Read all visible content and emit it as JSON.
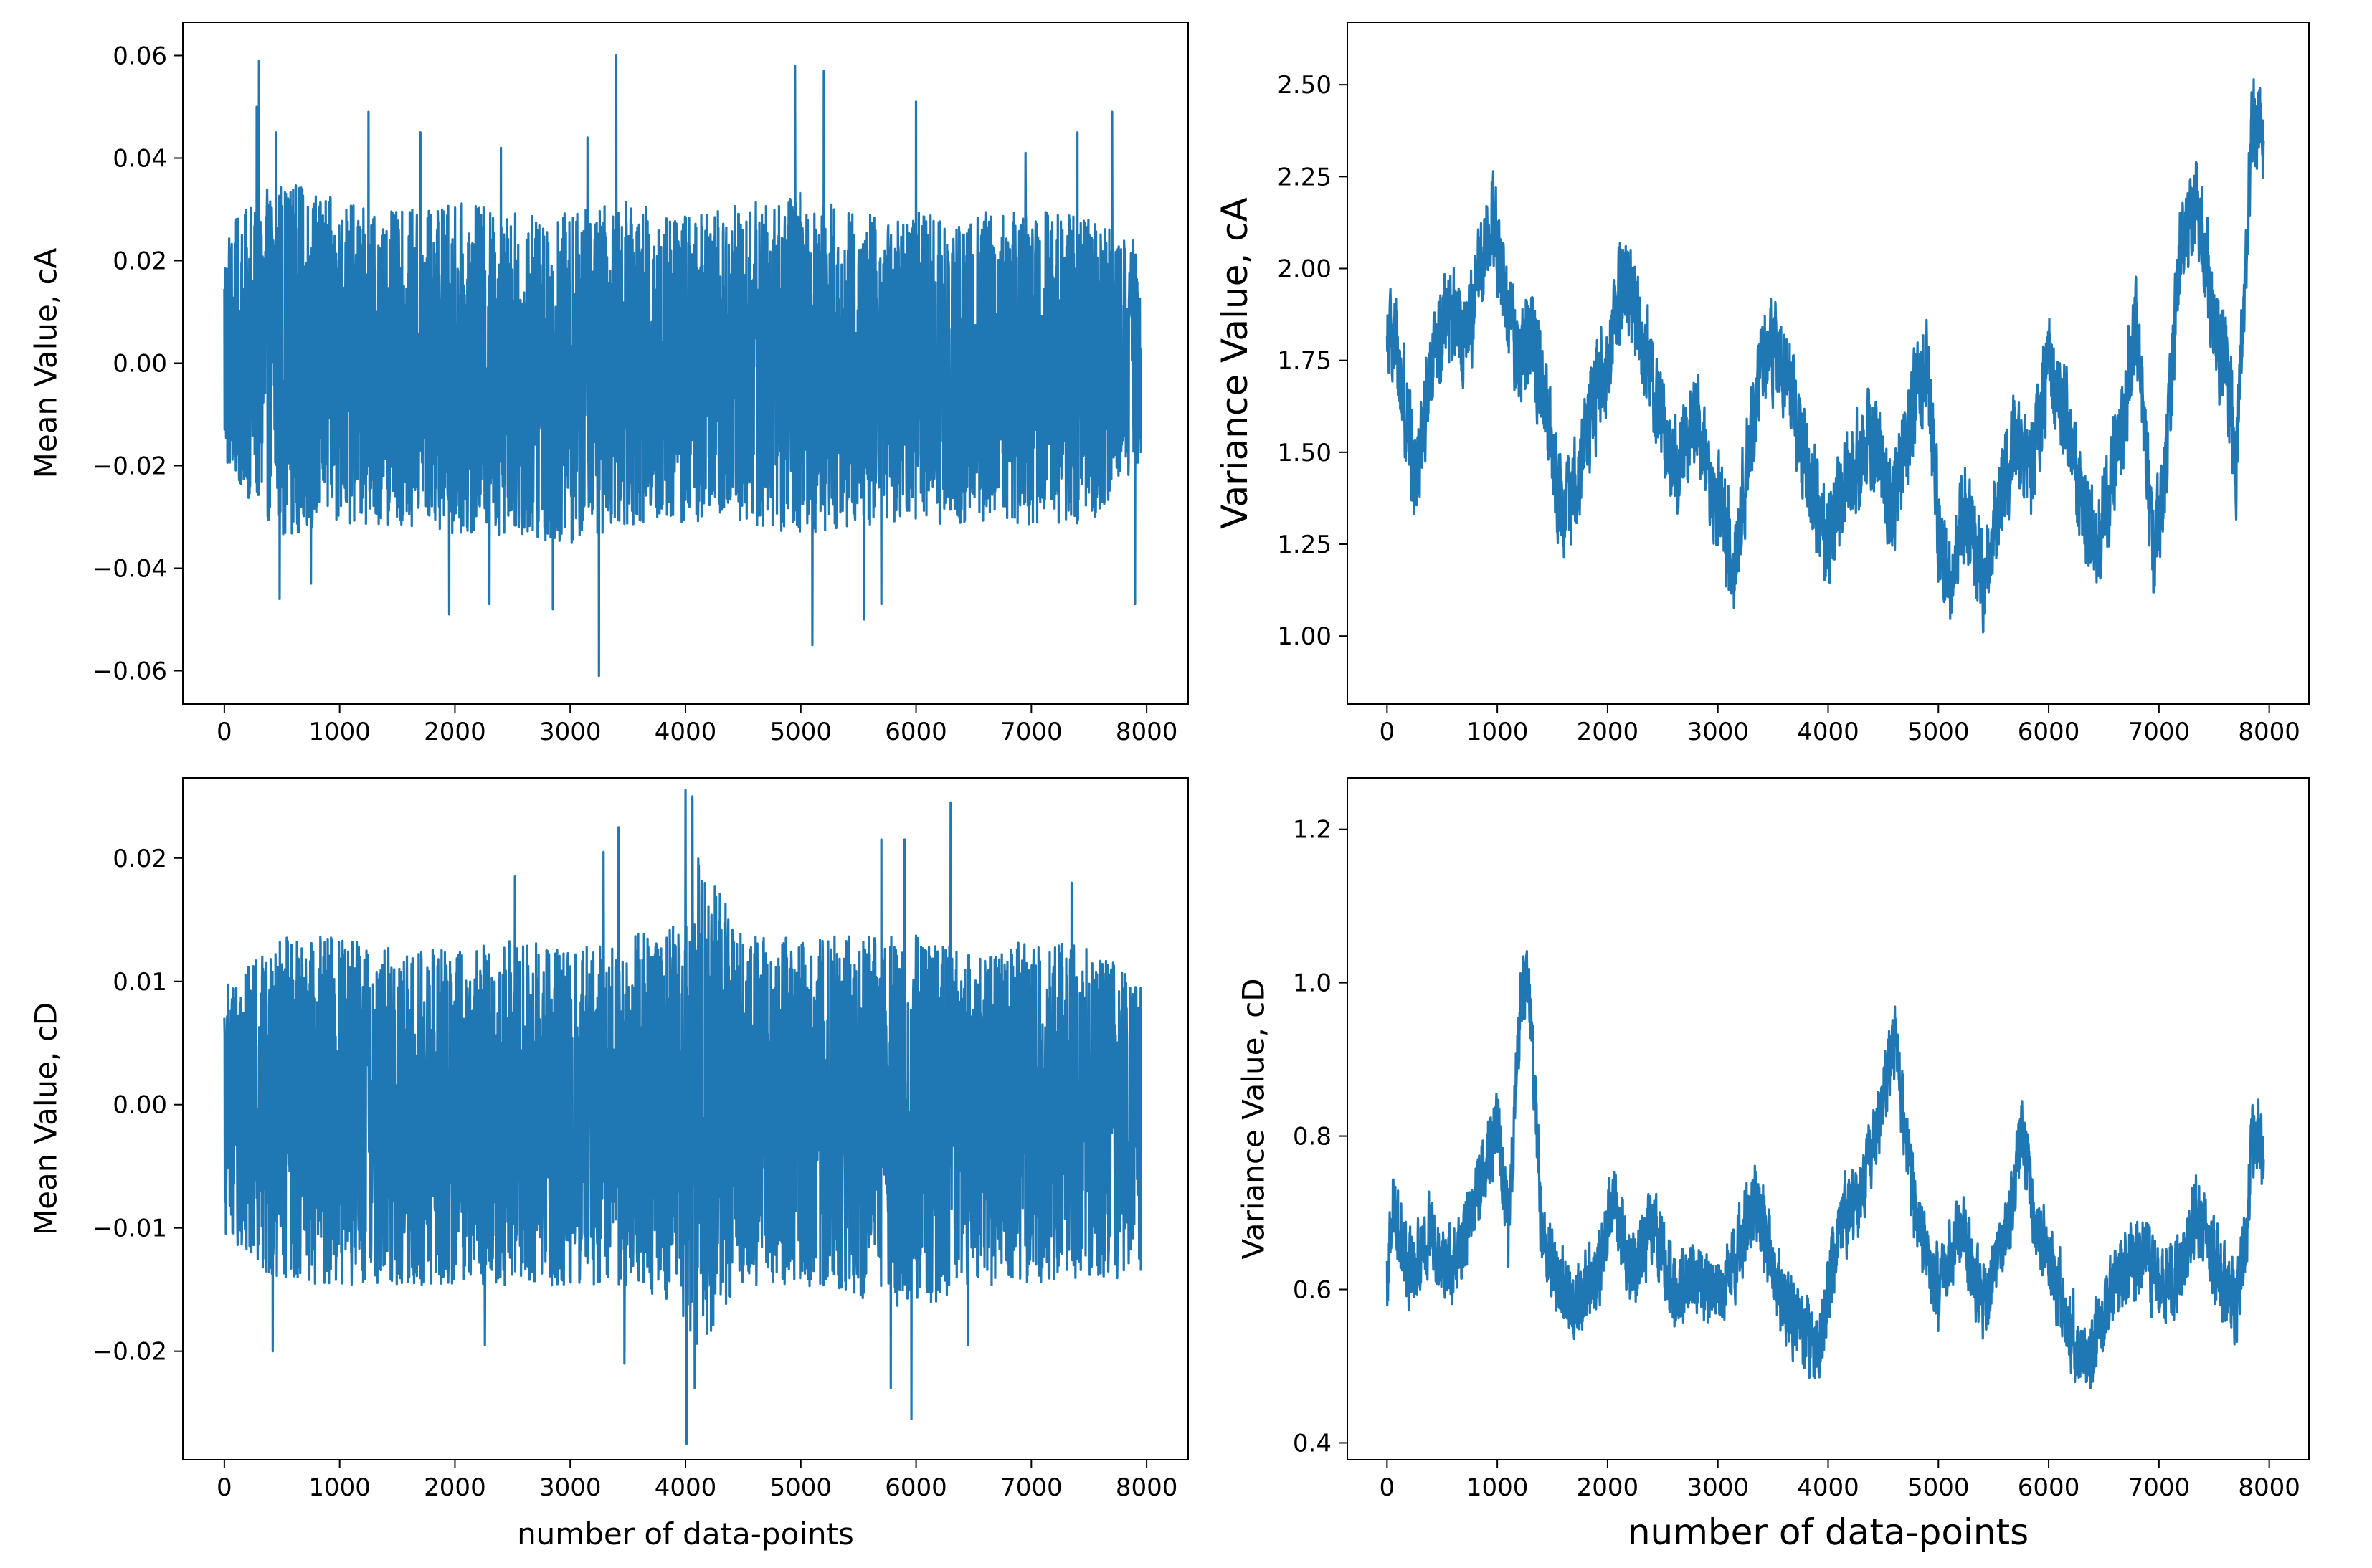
{
  "chart_data": [
    {
      "type": "line",
      "id": "mean-ca",
      "ylabel": "Mean Value, cA",
      "xlabel": "",
      "xlim": [
        -360,
        8360
      ],
      "ylim": [
        -0.0665,
        0.0665
      ],
      "xticks": [
        0,
        1000,
        2000,
        3000,
        4000,
        5000,
        6000,
        7000,
        8000
      ],
      "yticks": [
        -0.06,
        -0.04,
        -0.02,
        0.0,
        0.02,
        0.04,
        0.06
      ],
      "ytick_labels": [
        "−0.06",
        "−0.04",
        "−0.02",
        "0.00",
        "0.02",
        "0.04",
        "0.06"
      ],
      "series": [
        {
          "color": "#1f77b4",
          "n_points": 7950,
          "x_range": [
            0,
            7950
          ],
          "envelope": {
            "x": [
              0,
              500,
              1000,
              1500,
              2000,
              2500,
              3000,
              3500,
              4000,
              4500,
              5000,
              5500,
              6000,
              6500,
              7000,
              7500,
              7950
            ],
            "upper": [
              0.025,
              0.035,
              0.03,
              0.028,
              0.03,
              0.028,
              0.028,
              0.03,
              0.028,
              0.03,
              0.032,
              0.028,
              0.028,
              0.028,
              0.028,
              0.028,
              0.022
            ],
            "lower": [
              -0.02,
              -0.032,
              -0.03,
              -0.03,
              -0.032,
              -0.032,
              -0.034,
              -0.03,
              -0.03,
              -0.03,
              -0.032,
              -0.03,
              -0.03,
              -0.03,
              -0.03,
              -0.03,
              -0.018
            ]
          },
          "spikes": [
            [
              300,
              0.059
            ],
            [
              280,
              0.05
            ],
            [
              450,
              0.045
            ],
            [
              1250,
              0.049
            ],
            [
              1700,
              0.045
            ],
            [
              2400,
              0.042
            ],
            [
              3400,
              0.06
            ],
            [
              3150,
              0.044
            ],
            [
              4950,
              0.058
            ],
            [
              5200,
              0.057
            ],
            [
              6000,
              0.051
            ],
            [
              6950,
              0.041
            ],
            [
              7400,
              0.045
            ],
            [
              7700,
              0.049
            ],
            [
              1950,
              -0.049
            ],
            [
              2300,
              -0.047
            ],
            [
              3250,
              -0.061
            ],
            [
              2850,
              -0.048
            ],
            [
              5100,
              -0.055
            ],
            [
              5550,
              -0.05
            ],
            [
              5700,
              -0.047
            ],
            [
              480,
              -0.046
            ],
            [
              750,
              -0.043
            ],
            [
              7900,
              -0.047
            ]
          ]
        }
      ]
    },
    {
      "type": "line",
      "id": "variance-ca",
      "ylabel": "Variance Value, cA",
      "xlabel": "",
      "xlim": [
        -360,
        8360
      ],
      "ylim": [
        0.815,
        2.67
      ],
      "xticks": [
        0,
        1000,
        2000,
        3000,
        4000,
        5000,
        6000,
        7000,
        8000
      ],
      "yticks": [
        1.0,
        1.25,
        1.5,
        1.75,
        2.0,
        2.25,
        2.5
      ],
      "ytick_labels": [
        "1.00",
        "1.25",
        "1.50",
        "1.75",
        "2.00",
        "2.25",
        "2.50"
      ],
      "series": [
        {
          "color": "#1f77b4",
          "n_points": 7950,
          "x_range": [
            0,
            7950
          ],
          "trend": {
            "x": [
              0,
              50,
              150,
              250,
              400,
              550,
              700,
              850,
              950,
              1050,
              1200,
              1300,
              1500,
              1600,
              1800,
              2000,
              2150,
              2300,
              2450,
              2600,
              2800,
              3000,
              3150,
              3300,
              3450,
              3600,
              3750,
              3900,
              4000,
              4200,
              4400,
              4600,
              4750,
              4900,
              5000,
              5100,
              5250,
              5400,
              5550,
              5700,
              5850,
              6000,
              6150,
              6300,
              6450,
              6650,
              6800,
              6950,
              7050,
              7200,
              7350,
              7500,
              7650,
              7700,
              7800,
              7850,
              7950
            ],
            "y": [
              1.75,
              1.85,
              1.65,
              1.45,
              1.7,
              1.9,
              1.8,
              2.0,
              2.15,
              1.95,
              1.75,
              1.85,
              1.5,
              1.3,
              1.55,
              1.75,
              2.0,
              1.8,
              1.65,
              1.45,
              1.6,
              1.35,
              1.2,
              1.55,
              1.8,
              1.75,
              1.55,
              1.35,
              1.25,
              1.45,
              1.55,
              1.35,
              1.6,
              1.75,
              1.3,
              1.15,
              1.35,
              1.15,
              1.35,
              1.55,
              1.45,
              1.75,
              1.6,
              1.35,
              1.25,
              1.55,
              1.85,
              1.2,
              1.45,
              2.05,
              2.2,
              1.85,
              1.65,
              1.45,
              2.1,
              2.4,
              2.35
            ]
          },
          "noise_amplitude": 0.24
        }
      ]
    },
    {
      "type": "line",
      "id": "mean-cd",
      "ylabel": "Mean Value, cD",
      "xlabel": "number of data-points",
      "xlim": [
        -360,
        8360
      ],
      "ylim": [
        -0.0288,
        0.0265
      ],
      "xticks": [
        0,
        1000,
        2000,
        3000,
        4000,
        5000,
        6000,
        7000,
        8000
      ],
      "yticks": [
        -0.02,
        -0.01,
        0.0,
        0.01,
        0.02
      ],
      "ytick_labels": [
        "−0.02",
        "−0.01",
        "0.00",
        "0.01",
        "0.02"
      ],
      "series": [
        {
          "color": "#1f77b4",
          "n_points": 7950,
          "x_range": [
            0,
            7950
          ],
          "envelope": {
            "x": [
              0,
              500,
              1000,
              1500,
              2000,
              2500,
              3000,
              3500,
              3950,
              4100,
              4500,
              5000,
              5500,
              6000,
              6500,
              7000,
              7500,
              7950
            ],
            "upper": [
              0.009,
              0.013,
              0.013,
              0.012,
              0.012,
              0.013,
              0.012,
              0.013,
              0.014,
              0.02,
              0.013,
              0.013,
              0.013,
              0.013,
              0.012,
              0.013,
              0.012,
              0.01
            ],
            "lower": [
              -0.01,
              -0.014,
              -0.014,
              -0.014,
              -0.014,
              -0.014,
              -0.014,
              -0.014,
              -0.016,
              -0.02,
              -0.014,
              -0.014,
              -0.015,
              -0.016,
              -0.014,
              -0.014,
              -0.014,
              -0.013
            ]
          },
          "spikes": [
            [
              4000,
              0.0255
            ],
            [
              4060,
              0.025
            ],
            [
              3420,
              0.0225
            ],
            [
              5700,
              0.0215
            ],
            [
              6300,
              0.0245
            ],
            [
              5900,
              0.0215
            ],
            [
              3290,
              0.0205
            ],
            [
              2520,
              0.0185
            ],
            [
              7350,
              0.018
            ],
            [
              4010,
              -0.0275
            ],
            [
              5960,
              -0.0255
            ],
            [
              5780,
              -0.023
            ],
            [
              3470,
              -0.021
            ],
            [
              4080,
              -0.023
            ],
            [
              420,
              -0.02
            ],
            [
              2260,
              -0.0195
            ],
            [
              6450,
              -0.0195
            ]
          ]
        }
      ]
    },
    {
      "type": "line",
      "id": "variance-cd",
      "ylabel": "Variance Value, cD",
      "xlabel": "number of data-points",
      "xlim": [
        -360,
        8360
      ],
      "ylim": [
        0.378,
        1.267
      ],
      "xticks": [
        0,
        1000,
        2000,
        3000,
        4000,
        5000,
        6000,
        7000,
        8000
      ],
      "yticks": [
        0.4,
        0.6,
        0.8,
        1.0,
        1.2
      ],
      "ytick_labels": [
        "0.4",
        "0.6",
        "0.8",
        "1.0",
        "1.2"
      ],
      "series": [
        {
          "color": "#1f77b4",
          "n_points": 7950,
          "x_range": [
            0,
            7950
          ],
          "trend": {
            "x": [
              0,
              50,
              200,
              400,
              600,
              800,
              1000,
              1100,
              1200,
              1280,
              1400,
              1550,
              1700,
              1900,
              2050,
              2200,
              2400,
              2600,
              2800,
              3000,
              3200,
              3350,
              3550,
              3750,
              3900,
              4100,
              4300,
              4500,
              4600,
              4800,
              5000,
              5200,
              5400,
              5600,
              5750,
              5900,
              6100,
              6300,
              6450,
              6650,
              6850,
              7000,
              7150,
              7350,
              7550,
              7700,
              7800,
              7850,
              7950
            ],
            "y": [
              0.6,
              0.72,
              0.62,
              0.68,
              0.62,
              0.72,
              0.82,
              0.68,
              0.95,
              1.02,
              0.68,
              0.62,
              0.58,
              0.62,
              0.72,
              0.62,
              0.68,
              0.6,
              0.62,
              0.58,
              0.66,
              0.72,
              0.6,
              0.55,
              0.52,
              0.68,
              0.72,
              0.85,
              0.93,
              0.68,
              0.6,
              0.68,
              0.58,
              0.65,
              0.8,
              0.68,
              0.6,
              0.5,
              0.55,
              0.62,
              0.65,
              0.6,
              0.62,
              0.7,
              0.62,
              0.58,
              0.68,
              0.8,
              0.78
            ]
          },
          "noise_amplitude": 0.09
        }
      ]
    }
  ]
}
